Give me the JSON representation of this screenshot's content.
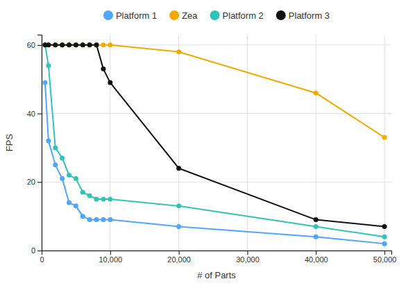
{
  "chart_data": {
    "type": "line",
    "xlabel": "# of Parts",
    "ylabel": "FPS",
    "x": [
      500,
      1000,
      2000,
      3000,
      4000,
      5000,
      6000,
      7000,
      8000,
      9000,
      10000,
      20000,
      40000,
      50000
    ],
    "series": [
      {
        "name": "Platform 1",
        "color": "#4da6ff",
        "values": [
          49,
          32,
          25,
          21,
          14,
          13,
          10,
          9,
          9,
          9,
          9,
          7,
          4,
          2
        ]
      },
      {
        "name": "Zea",
        "color": "#f5a800",
        "values": [
          60,
          60,
          60,
          60,
          60,
          60,
          60,
          60,
          60,
          60,
          60,
          58,
          46,
          33
        ]
      },
      {
        "name": "Platform 2",
        "color": "#2ec4b6",
        "values": [
          60,
          54,
          30,
          27,
          22,
          21,
          17,
          16,
          15,
          15,
          15,
          13,
          7,
          4
        ]
      },
      {
        "name": "Platform 3",
        "color": "#111111",
        "values": [
          60,
          60,
          60,
          60,
          60,
          60,
          60,
          60,
          60,
          53,
          49,
          24,
          9,
          7
        ]
      }
    ],
    "xlim": [
      0,
      51000
    ],
    "ylim": [
      0,
      63
    ],
    "xticks": [
      0,
      {
        "value": 10000,
        "label": "10,000"
      },
      {
        "value": 20000,
        "label": "20,000"
      },
      {
        "value": 30000,
        "label": "30,000"
      },
      {
        "value": 40000,
        "label": "40,000"
      },
      {
        "value": 50000,
        "label": "50,000"
      }
    ],
    "yticks": [
      0,
      20,
      40,
      60
    ],
    "grid": true,
    "legend": "top",
    "marker": "circle"
  }
}
